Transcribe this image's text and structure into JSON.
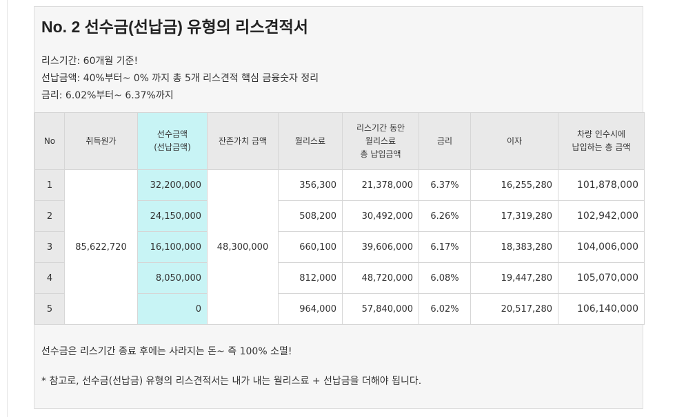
{
  "title": "No. 2 선수금(선납금) 유형의 리스견적서",
  "intro": [
    "리스기간: 60개월 기준!",
    "선납금액: 40%부터~ 0% 까지 총 5개 리스견적 핵심 금융숫자 정리",
    "금리: 6.02%부터~ 6.37%까지"
  ],
  "table": {
    "headers": {
      "no": "No",
      "acquisition": "취득원가",
      "deposit_line1": "선수금액",
      "deposit_line2": "(선납금액)",
      "residual": "잔존가치 금액",
      "monthly": "월리스료",
      "total_paid_line1": "리스기간 동안",
      "total_paid_line2": "월리스료",
      "total_paid_line3": "총 납입금액",
      "rate": "금리",
      "interest": "이자",
      "grand_total_line1": "차량 인수시에",
      "grand_total_line2": "납입하는 총 금액"
    },
    "acquisition_cost": "85,622,720",
    "residual_value": "48,300,000",
    "rows": [
      {
        "no": "1",
        "deposit": "32,200,000",
        "monthly": "356,300",
        "total_paid": "21,378,000",
        "rate": "6.37%",
        "interest": "16,255,280",
        "grand_total": "101,878,000"
      },
      {
        "no": "2",
        "deposit": "24,150,000",
        "monthly": "508,200",
        "total_paid": "30,492,000",
        "rate": "6.26%",
        "interest": "17,319,280",
        "grand_total": "102,942,000"
      },
      {
        "no": "3",
        "deposit": "16,100,000",
        "monthly": "660,100",
        "total_paid": "39,606,000",
        "rate": "6.17%",
        "interest": "18,383,280",
        "grand_total": "104,006,000"
      },
      {
        "no": "4",
        "deposit": "8,050,000",
        "monthly": "812,000",
        "total_paid": "48,720,000",
        "rate": "6.08%",
        "interest": "19,447,280",
        "grand_total": "105,070,000"
      },
      {
        "no": "5",
        "deposit": "0",
        "monthly": "964,000",
        "total_paid": "57,840,000",
        "rate": "6.02%",
        "interest": "20,517,280",
        "grand_total": "106,140,000"
      }
    ]
  },
  "notes": [
    "선수금은 리스기간 종료 후에는 사라지는 돈~ 즉 100% 소멸!",
    "* 참고로, 선수금(선납금) 유형의 리스견적서는 내가 내는 월리스료 + 선납금을 더해야 됩니다."
  ],
  "colors": {
    "highlight": "#c8f4f5",
    "header_bg": "#e9e9e9",
    "card_bg": "#f6f6f6"
  }
}
